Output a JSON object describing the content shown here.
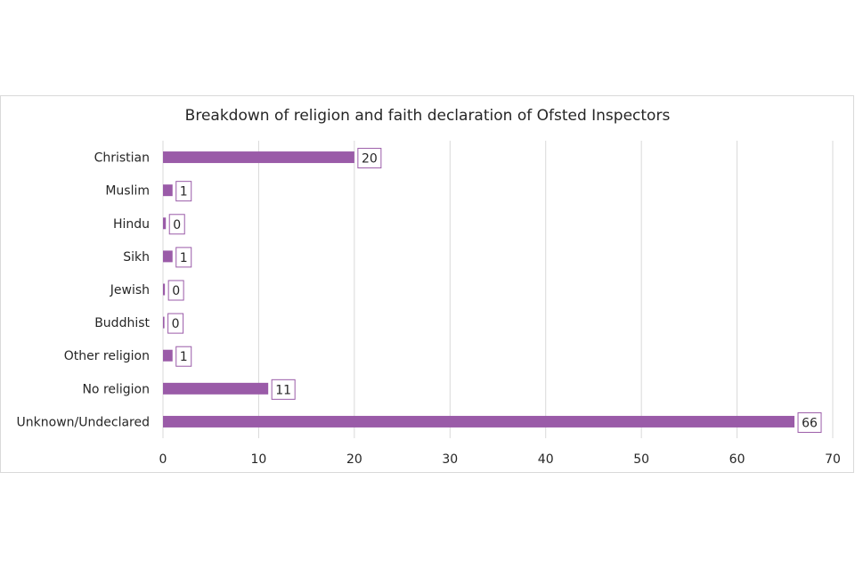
{
  "chart_data": {
    "type": "bar",
    "orientation": "horizontal",
    "title": "Breakdown of religion and faith declaration of Ofsted Inspectors",
    "categories": [
      "Christian",
      "Muslim",
      "Hindu",
      "Sikh",
      "Jewish",
      "Buddhist",
      "Other religion",
      "No religion",
      "Unknown/Undeclared"
    ],
    "values": [
      20,
      1,
      0,
      1,
      0,
      0,
      1,
      11,
      66
    ],
    "bar_values": [
      20,
      1,
      0.3,
      1,
      0.2,
      0.15,
      1,
      11,
      66
    ],
    "xlim": [
      0,
      70
    ],
    "xticks": [
      0,
      10,
      20,
      30,
      40,
      50,
      60,
      70
    ],
    "grid": true,
    "legend": "none",
    "bar_color": "#9a5ba8",
    "gridline_color": "#d9d9d9"
  }
}
